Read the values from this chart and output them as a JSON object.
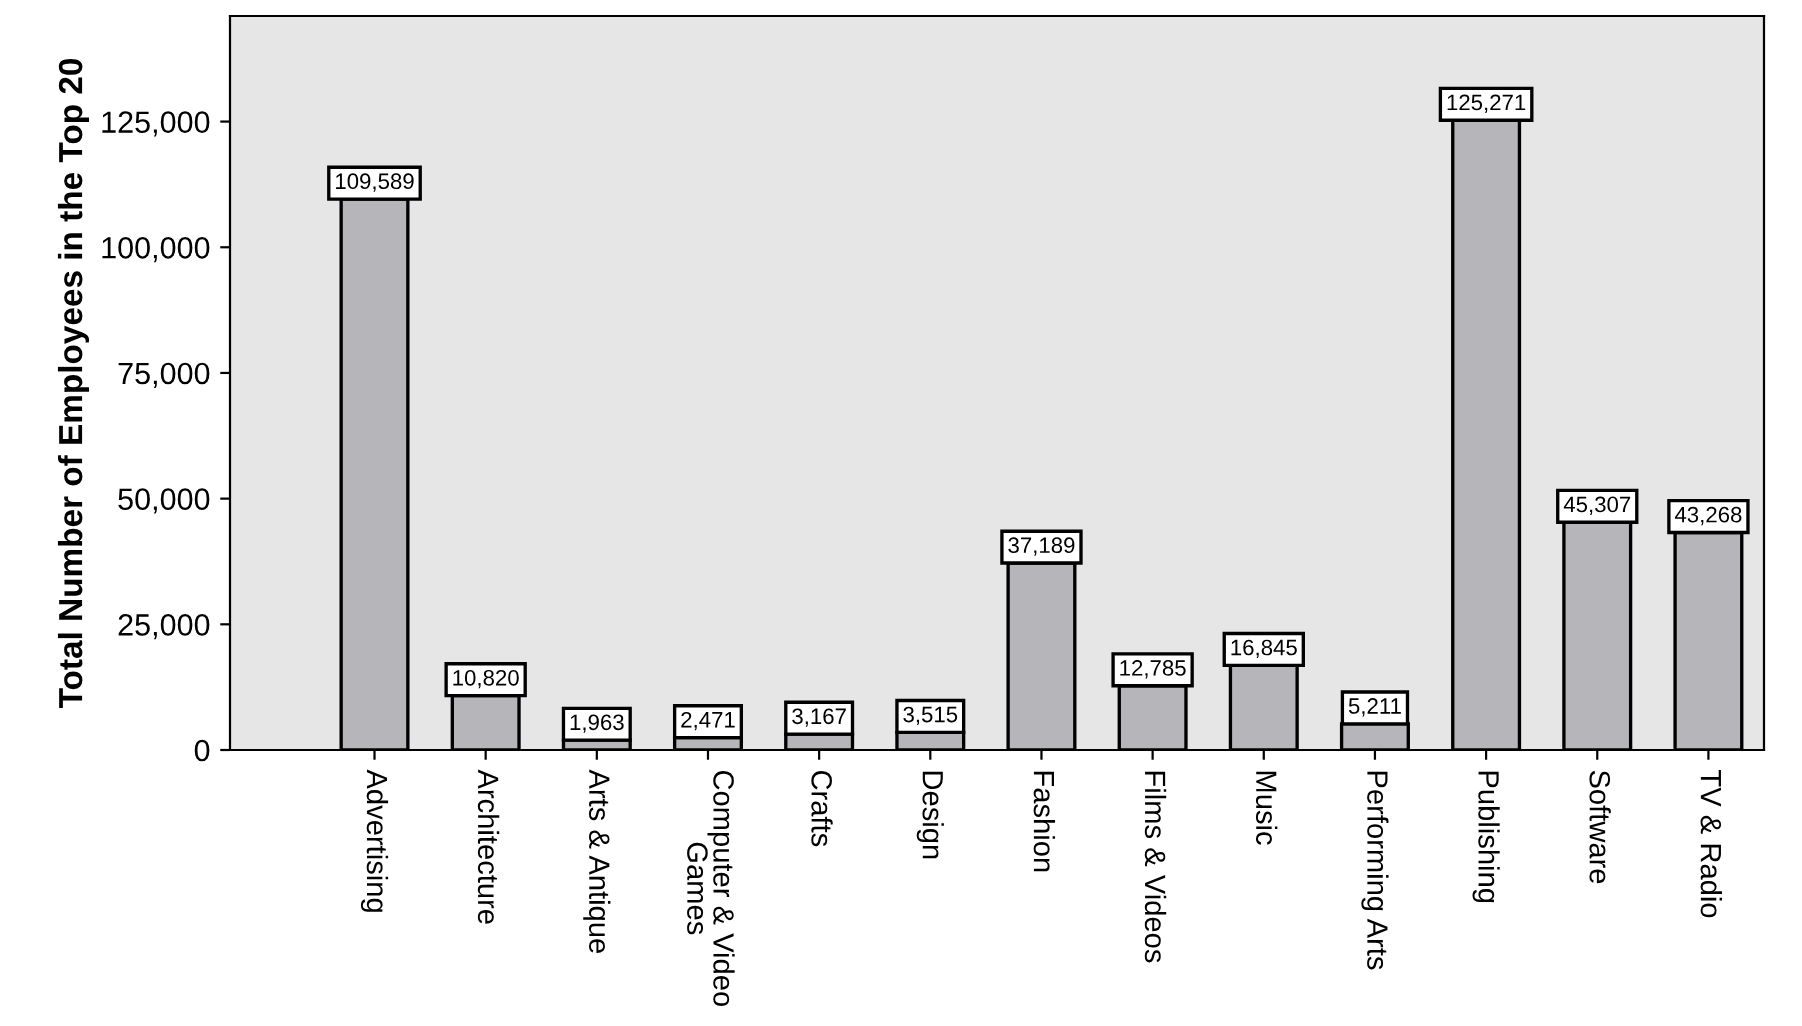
{
  "chart_data": {
    "type": "bar",
    "ylabel": "Total Number of Employees in the Top 20",
    "categories": [
      "Advertising",
      "Architecture",
      "Arts & Antique",
      "Computer & Video Games",
      "Crafts",
      "Design",
      "Fashion",
      "Films & Videos",
      "Music",
      "Performing Arts",
      "Publishing",
      "Software",
      "TV & Radio"
    ],
    "values": [
      109589,
      10820,
      1963,
      2471,
      3167,
      3515,
      37189,
      12785,
      16845,
      5211,
      125271,
      45307,
      43268
    ],
    "value_labels": [
      "109,589",
      "10,820",
      "1,963",
      "2,471",
      "3,167",
      "3,515",
      "37,189",
      "12,785",
      "16,845",
      "5,211",
      "125,271",
      "45,307",
      "43,268"
    ],
    "color": "#b6b6ba",
    "ylim": [
      0,
      146000
    ],
    "yticks": [
      {
        "value": 0,
        "label": "0"
      },
      {
        "value": 25000,
        "label": "25,000"
      },
      {
        "value": 50000,
        "label": "50,000"
      },
      {
        "value": 75000,
        "label": "75,000"
      },
      {
        "value": 100000,
        "label": "100,000"
      },
      {
        "value": 125000,
        "label": "125,000"
      }
    ],
    "grid": false
  }
}
